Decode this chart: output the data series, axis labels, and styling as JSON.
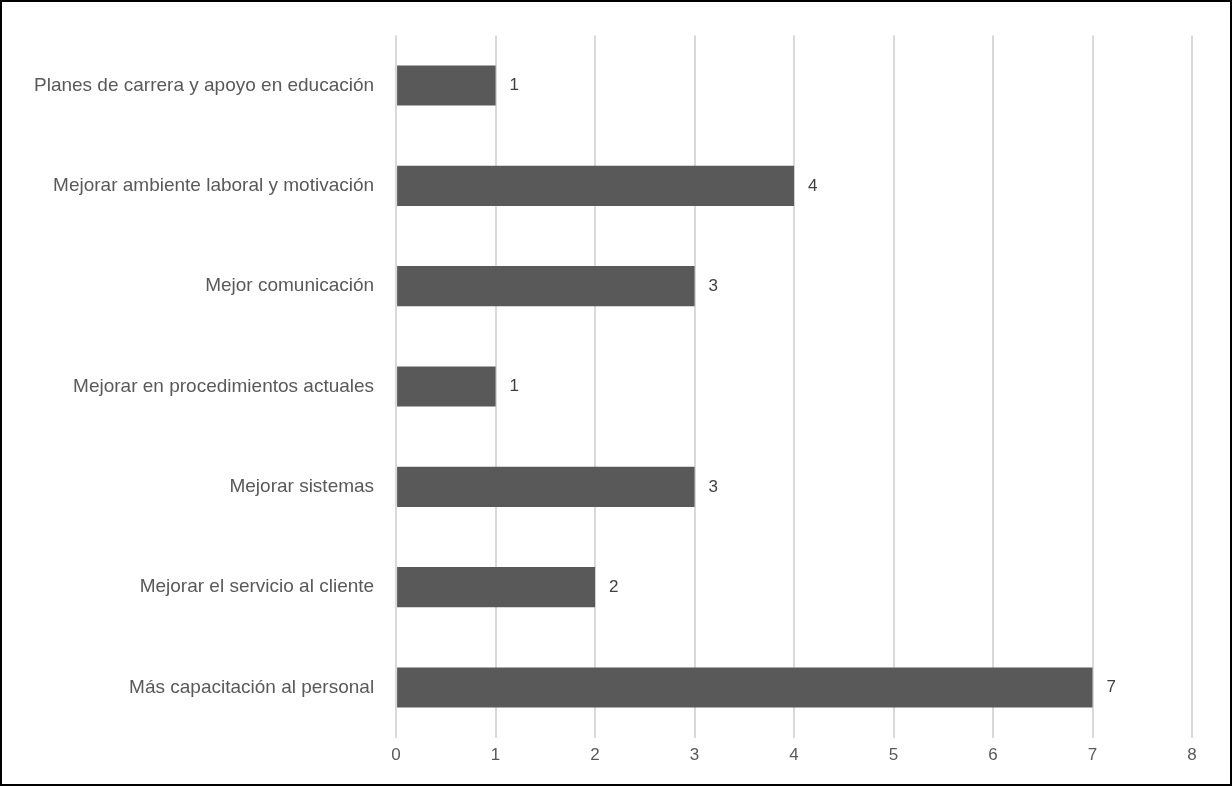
{
  "chart_data": {
    "type": "bar",
    "orientation": "horizontal",
    "categories": [
      "Planes de carrera y apoyo en educación",
      "Mejorar ambiente laboral y motivación",
      "Mejor comunicación",
      "Mejorar en procedimientos actuales",
      "Mejorar sistemas",
      "Mejorar el servicio al cliente",
      "Más capacitación al personal"
    ],
    "values": [
      1,
      4,
      3,
      1,
      3,
      2,
      7
    ],
    "color": "#595959",
    "xlim": [
      0,
      8
    ],
    "xticks": [
      0,
      1,
      2,
      3,
      4,
      5,
      6,
      7,
      8
    ],
    "grid": "x",
    "legend": false,
    "data_labels": true
  }
}
